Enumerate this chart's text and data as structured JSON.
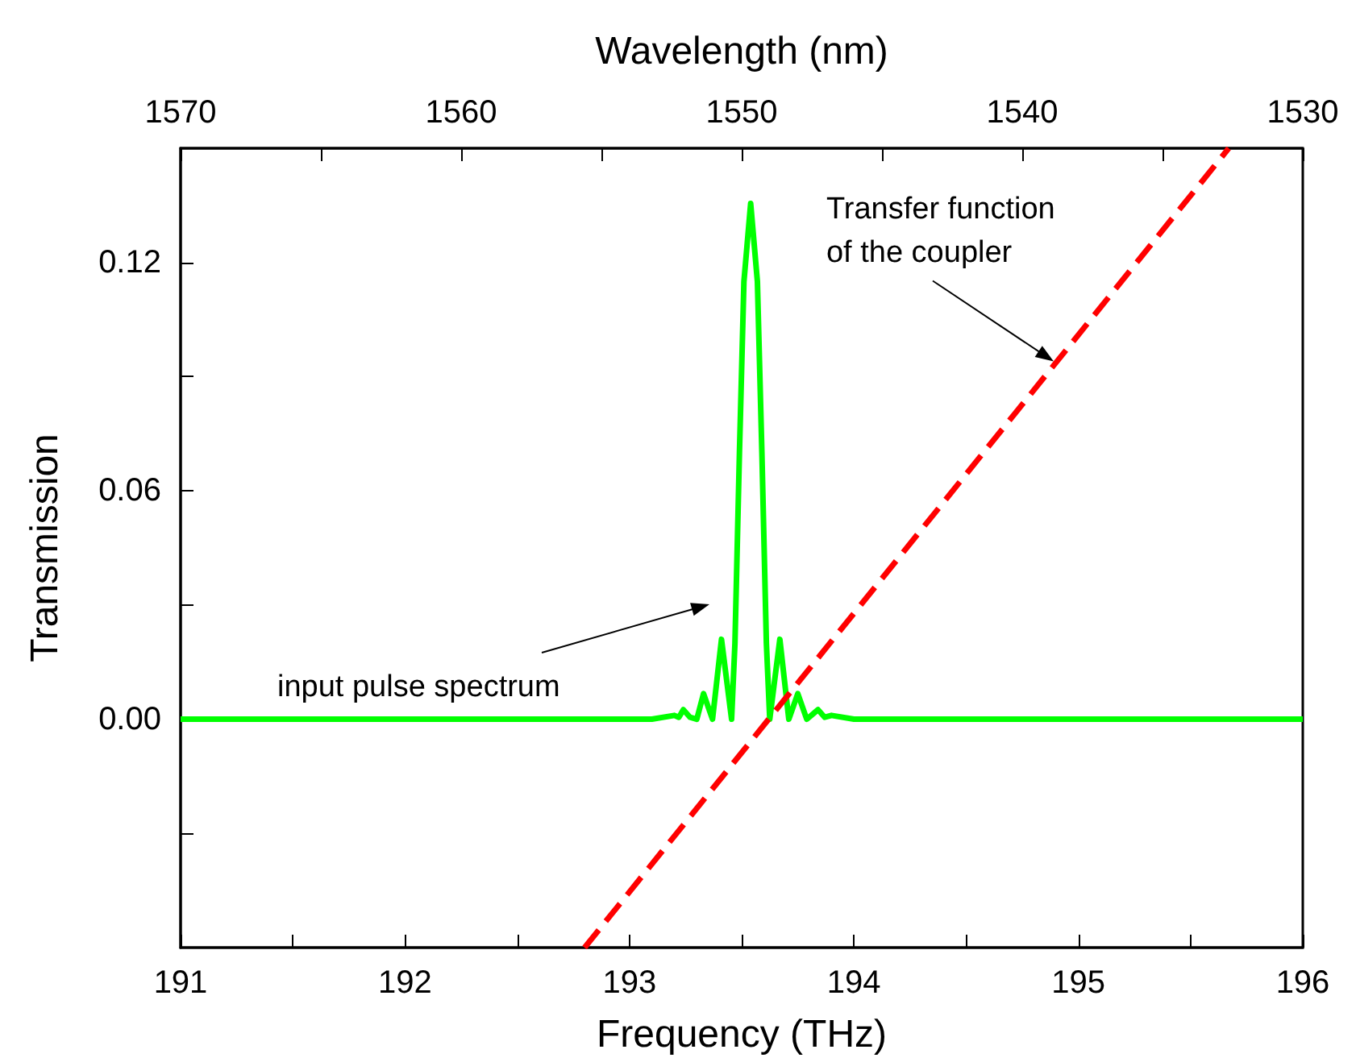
{
  "chart_data": {
    "type": "line",
    "xlabel": "Frequency (THz)",
    "ylabel": "Transmission",
    "x2label": "Wavelength (nm)",
    "xlim": [
      191,
      196
    ],
    "xticks": [
      191,
      {
        "value": 191.5,
        "label": null
      },
      192,
      {
        "value": 192.5,
        "label": null
      },
      193,
      {
        "value": 193.5,
        "label": null
      },
      194,
      {
        "value": 194.5,
        "label": null
      },
      195,
      {
        "value": 195.5,
        "label": null
      },
      196
    ],
    "x2lim": [
      1570,
      1530
    ],
    "x2ticks": [
      1570,
      {
        "value": 1565,
        "label": null
      },
      1560,
      {
        "value": 1555,
        "label": null
      },
      1550,
      {
        "value": 1545,
        "label": null
      },
      1540,
      {
        "value": 1535,
        "label": null
      },
      1530
    ],
    "ylim": [
      -0.06,
      0.15
    ],
    "yticks": [
      {
        "value": -0.03,
        "label": null
      },
      {
        "value": 0,
        "label": "0.00"
      },
      {
        "value": 0.03,
        "label": null
      },
      {
        "value": 0.06,
        "label": "0.06"
      },
      {
        "value": 0.09,
        "label": null
      },
      {
        "value": 0.12,
        "label": "0.12"
      }
    ],
    "grid": false,
    "marker": "none",
    "series": [
      {
        "color": "#00ff00",
        "line_style": "solid",
        "x": [
          191,
          193.1,
          193.2,
          193.22,
          193.24,
          193.27,
          193.3,
          193.33,
          193.37,
          193.41,
          193.455,
          193.47,
          193.49,
          193.51,
          193.54,
          193.57,
          193.59,
          193.61,
          193.625,
          193.67,
          193.71,
          193.75,
          193.79,
          193.84,
          193.87,
          193.9,
          194.0,
          196
        ],
        "values": [
          0,
          0,
          0.001,
          0.0005,
          0.0025,
          0.0005,
          0,
          0.0067,
          0,
          0.021,
          0,
          0.02,
          0.07,
          0.115,
          0.1355,
          0.115,
          0.07,
          0.02,
          0,
          0.021,
          0,
          0.0067,
          0,
          0.0025,
          0.0005,
          0.001,
          0,
          0
        ]
      },
      {
        "color": "#ff0000",
        "line_style": "dashed",
        "x": [
          192.8,
          195.67
        ],
        "values": [
          -0.06,
          0.15
        ]
      }
    ],
    "annotations": [
      {
        "text": "Transfer function\nof the coupler",
        "x": 194.89,
        "y": 0.094
      },
      "input pulse spectrum"
    ]
  }
}
